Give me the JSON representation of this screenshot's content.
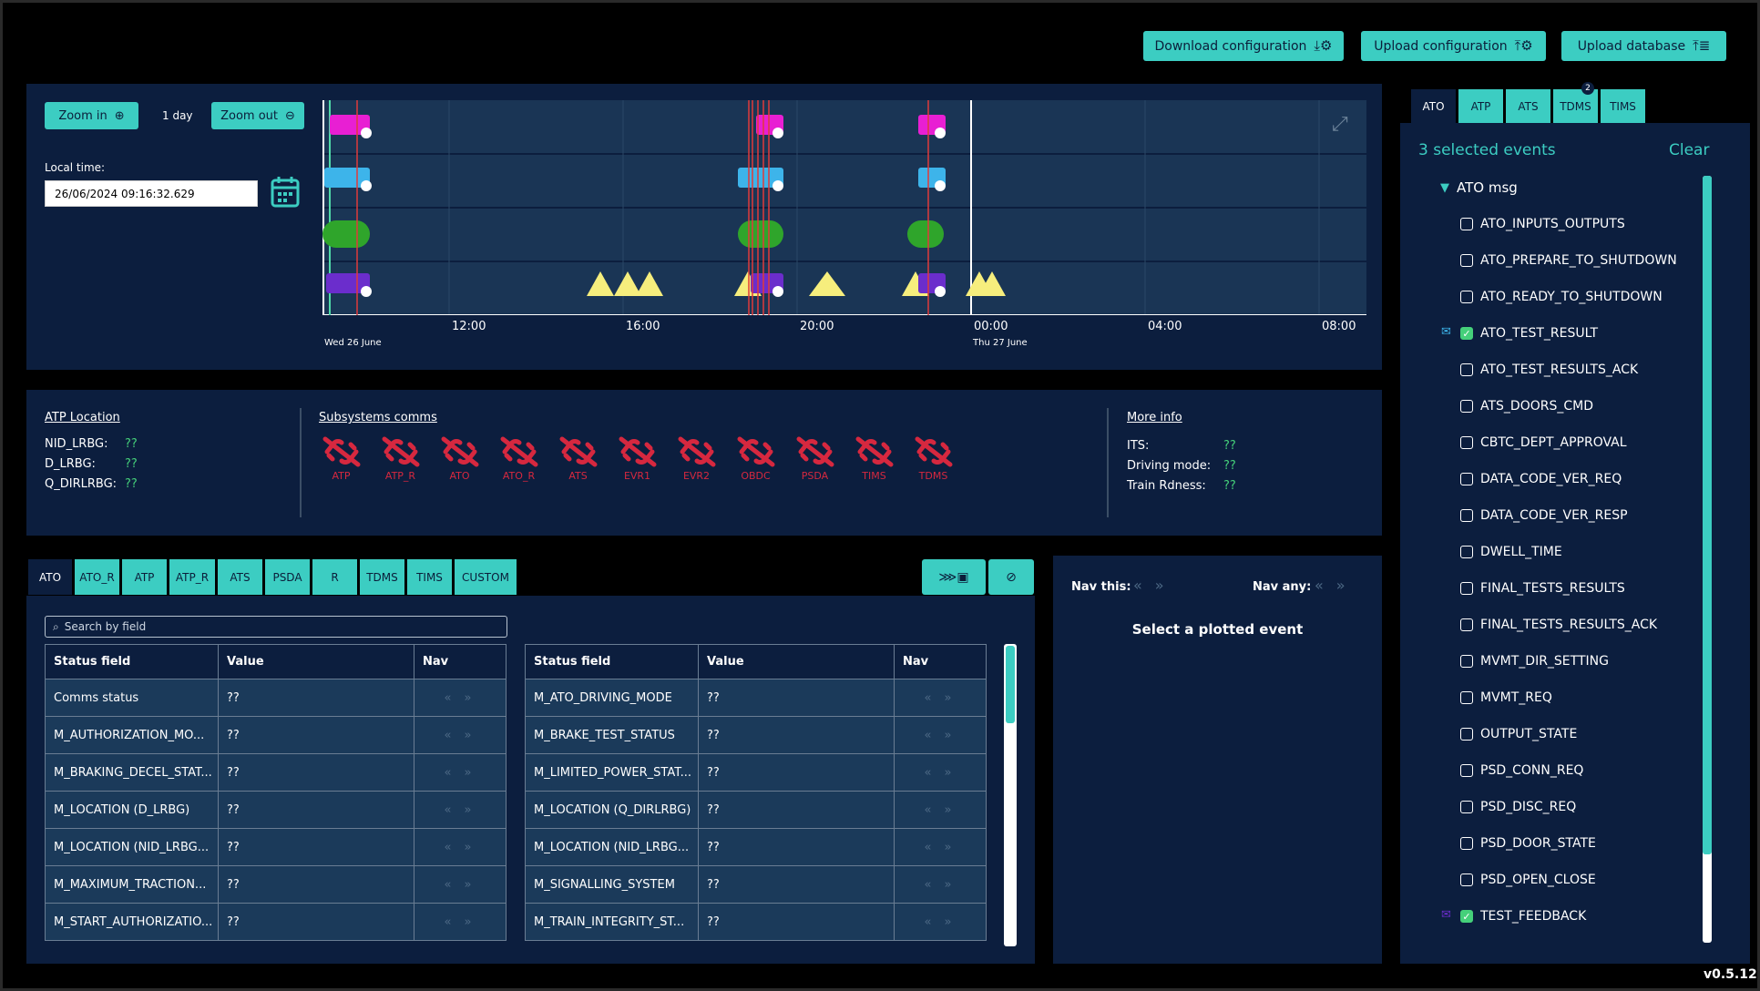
{
  "toolbar": {
    "download_label": "Download configuration",
    "upload_label": "Upload configuration",
    "upload_db_label": "Upload database"
  },
  "timeline": {
    "zoom_in": "Zoom in",
    "zoom_out": "Zoom out",
    "span": "1 day",
    "local_time_label": "Local time:",
    "local_time_value": "26/06/2024 09:16:32.629",
    "x_ticks": [
      "12:00",
      "16:00",
      "20:00",
      "00:00",
      "04:00",
      "08:00"
    ],
    "date_labels": [
      "Wed 26 June",
      "Thu 27 June"
    ]
  },
  "atp_location": {
    "title": "ATP Location",
    "rows": [
      {
        "k": "NID_LRBG:",
        "v": "??"
      },
      {
        "k": "D_LRBG:",
        "v": "??"
      },
      {
        "k": "Q_DIRLRBG:",
        "v": "??"
      }
    ]
  },
  "subsystems": {
    "title": "Subsystems comms",
    "items": [
      "ATP",
      "ATP_R",
      "ATO",
      "ATO_R",
      "ATS",
      "EVR1",
      "EVR2",
      "OBDC",
      "PSDA",
      "TIMS",
      "TDMS"
    ]
  },
  "more_info": {
    "title": "More info",
    "rows": [
      {
        "k": "ITS:",
        "v": "??"
      },
      {
        "k": "Driving mode:",
        "v": "??"
      },
      {
        "k": "Train Rdness:",
        "v": "??"
      }
    ]
  },
  "status_tabs": [
    "ATO",
    "ATO_R",
    "ATP",
    "ATP_R",
    "ATS",
    "PSDA",
    "R",
    "TDMS",
    "TIMS",
    "CUSTOM"
  ],
  "search_placeholder": "Search by field",
  "table_headers": {
    "field": "Status field",
    "value": "Value",
    "nav": "Nav"
  },
  "table_left": [
    {
      "f": "Comms status",
      "v": "??"
    },
    {
      "f": "M_AUTHORIZATION_MO...",
      "v": "??"
    },
    {
      "f": "M_BRAKING_DECEL_STAT...",
      "v": "??"
    },
    {
      "f": "M_LOCATION (D_LRBG)",
      "v": "??"
    },
    {
      "f": "M_LOCATION (NID_LRBG...",
      "v": "??"
    },
    {
      "f": "M_MAXIMUM_TRACTION...",
      "v": "??"
    },
    {
      "f": "M_START_AUTHORIZATIO...",
      "v": "??"
    }
  ],
  "table_right": [
    {
      "f": "M_ATO_DRIVING_MODE",
      "v": "??"
    },
    {
      "f": "M_BRAKE_TEST_STATUS",
      "v": "??"
    },
    {
      "f": "M_LIMITED_POWER_STAT...",
      "v": "??"
    },
    {
      "f": "M_LOCATION (Q_DIRLRBG)",
      "v": "??"
    },
    {
      "f": "M_LOCATION (NID_LRBG...",
      "v": "??"
    },
    {
      "f": "M_SIGNALLING_SYSTEM",
      "v": "??"
    },
    {
      "f": "M_TRAIN_INTEGRITY_ST...",
      "v": "??"
    }
  ],
  "nav_panel": {
    "nav_this": "Nav this:",
    "nav_any": "Nav any:",
    "empty": "Select a plotted event"
  },
  "event_tabs": [
    {
      "label": "ATO"
    },
    {
      "label": "ATP"
    },
    {
      "label": "ATS"
    },
    {
      "label": "TDMS",
      "badge": "2"
    },
    {
      "label": "TIMS"
    }
  ],
  "events": {
    "selected": "3 selected events",
    "clear": "Clear",
    "group": "ATO msg",
    "items": [
      {
        "name": "ATO_INPUTS_OUTPUTS",
        "on": false
      },
      {
        "name": "ATO_PREPARE_TO_SHUTDOWN",
        "on": false
      },
      {
        "name": "ATO_READY_TO_SHUTDOWN",
        "on": false
      },
      {
        "name": "ATO_TEST_RESULT",
        "on": true,
        "icon": "✉",
        "color": "#3db4ea"
      },
      {
        "name": "ATO_TEST_RESULTS_ACK",
        "on": false
      },
      {
        "name": "ATS_DOORS_CMD",
        "on": false
      },
      {
        "name": "CBTC_DEPT_APPROVAL",
        "on": false
      },
      {
        "name": "DATA_CODE_VER_REQ",
        "on": false
      },
      {
        "name": "DATA_CODE_VER_RESP",
        "on": false
      },
      {
        "name": "DWELL_TIME",
        "on": false
      },
      {
        "name": "FINAL_TESTS_RESULTS",
        "on": false
      },
      {
        "name": "FINAL_TESTS_RESULTS_ACK",
        "on": false
      },
      {
        "name": "MVMT_DIR_SETTING",
        "on": false
      },
      {
        "name": "MVMT_REQ",
        "on": false
      },
      {
        "name": "OUTPUT_STATE",
        "on": false
      },
      {
        "name": "PSD_CONN_REQ",
        "on": false
      },
      {
        "name": "PSD_DISC_REQ",
        "on": false
      },
      {
        "name": "PSD_DOOR_STATE",
        "on": false
      },
      {
        "name": "PSD_OPEN_CLOSE",
        "on": false
      },
      {
        "name": "TEST_FEEDBACK",
        "on": true,
        "icon": "✉",
        "color": "#6b2dcc"
      }
    ]
  },
  "version": "v0.5.12"
}
